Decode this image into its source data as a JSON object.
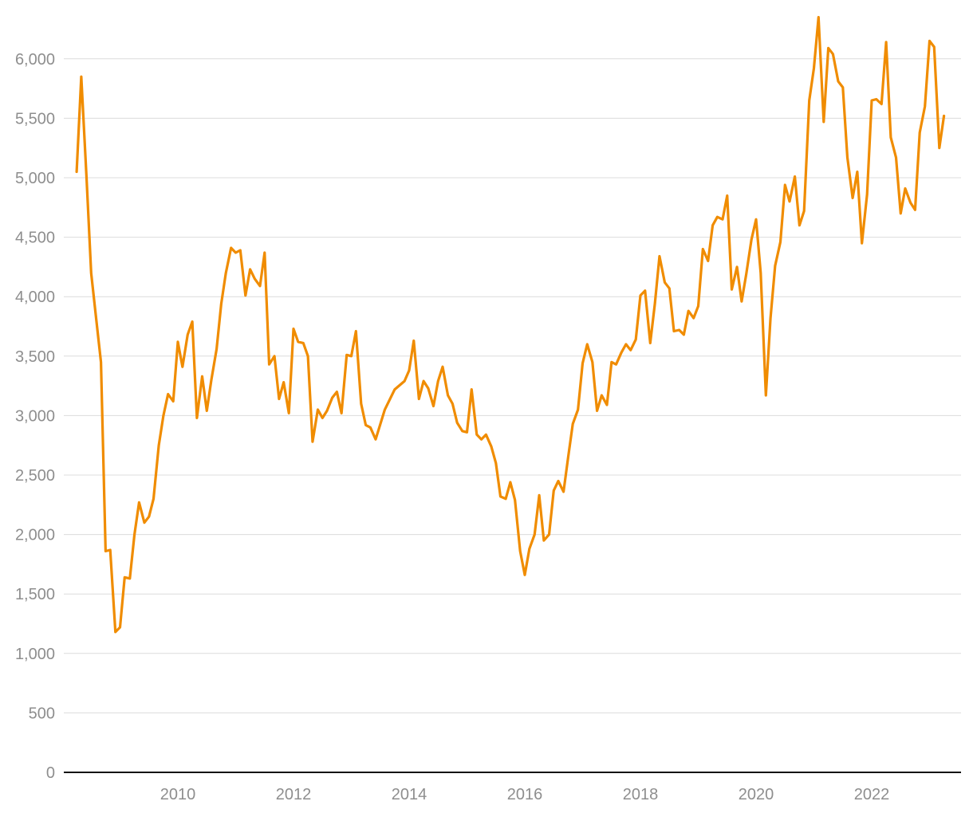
{
  "chart_data": {
    "type": "line",
    "title": "",
    "xlabel": "",
    "ylabel": "",
    "xlim": [
      2008.0,
      2023.8
    ],
    "ylim": [
      0,
      6000
    ],
    "y_ticks": [
      0,
      500,
      1000,
      1500,
      2000,
      2500,
      3000,
      3500,
      4000,
      4500,
      5000,
      5500,
      6000
    ],
    "y_tick_labels": [
      "0",
      "500",
      "1,000",
      "1,500",
      "2,000",
      "2,500",
      "3,000",
      "3,500",
      "4,000",
      "4,500",
      "5,000",
      "5,500",
      "6,000"
    ],
    "x_ticks": [
      2010,
      2012,
      2014,
      2016,
      2018,
      2020,
      2022
    ],
    "x_tick_labels": [
      "2010",
      "2012",
      "2014",
      "2016",
      "2018",
      "2020",
      "2022"
    ],
    "grid": true,
    "legend": "none",
    "colors": {
      "line": "#f08c00",
      "grid": "#dcdcdc",
      "axis": "#111111",
      "tick_text": "#8e8e8e"
    },
    "series": [
      {
        "values": [
          [
            2008.25,
            5050
          ],
          [
            2008.33,
            5850
          ],
          [
            2008.42,
            5000
          ],
          [
            2008.5,
            4200
          ],
          [
            2008.58,
            3850
          ],
          [
            2008.67,
            3450
          ],
          [
            2008.75,
            1860
          ],
          [
            2008.83,
            1870
          ],
          [
            2008.92,
            1180
          ],
          [
            2009.0,
            1220
          ],
          [
            2009.08,
            1640
          ],
          [
            2009.17,
            1630
          ],
          [
            2009.25,
            2000
          ],
          [
            2009.33,
            2270
          ],
          [
            2009.42,
            2100
          ],
          [
            2009.5,
            2150
          ],
          [
            2009.58,
            2300
          ],
          [
            2009.67,
            2750
          ],
          [
            2009.75,
            3000
          ],
          [
            2009.83,
            3180
          ],
          [
            2009.92,
            3120
          ],
          [
            2010.0,
            3620
          ],
          [
            2010.08,
            3410
          ],
          [
            2010.17,
            3680
          ],
          [
            2010.25,
            3790
          ],
          [
            2010.33,
            2980
          ],
          [
            2010.42,
            3330
          ],
          [
            2010.5,
            3040
          ],
          [
            2010.58,
            3300
          ],
          [
            2010.67,
            3560
          ],
          [
            2010.75,
            3940
          ],
          [
            2010.83,
            4200
          ],
          [
            2010.92,
            4410
          ],
          [
            2011.0,
            4370
          ],
          [
            2011.08,
            4390
          ],
          [
            2011.17,
            4010
          ],
          [
            2011.25,
            4230
          ],
          [
            2011.33,
            4150
          ],
          [
            2011.42,
            4090
          ],
          [
            2011.5,
            4370
          ],
          [
            2011.58,
            3430
          ],
          [
            2011.67,
            3500
          ],
          [
            2011.75,
            3140
          ],
          [
            2011.83,
            3280
          ],
          [
            2011.92,
            3020
          ],
          [
            2012.0,
            3730
          ],
          [
            2012.08,
            3620
          ],
          [
            2012.17,
            3610
          ],
          [
            2012.25,
            3500
          ],
          [
            2012.33,
            2780
          ],
          [
            2012.42,
            3050
          ],
          [
            2012.5,
            2980
          ],
          [
            2012.58,
            3040
          ],
          [
            2012.67,
            3150
          ],
          [
            2012.75,
            3200
          ],
          [
            2012.83,
            3020
          ],
          [
            2012.92,
            3510
          ],
          [
            2013.0,
            3500
          ],
          [
            2013.08,
            3710
          ],
          [
            2013.17,
            3100
          ],
          [
            2013.25,
            2920
          ],
          [
            2013.33,
            2900
          ],
          [
            2013.42,
            2800
          ],
          [
            2013.58,
            3050
          ],
          [
            2013.75,
            3220
          ],
          [
            2013.92,
            3290
          ],
          [
            2014.0,
            3380
          ],
          [
            2014.08,
            3630
          ],
          [
            2014.17,
            3140
          ],
          [
            2014.25,
            3290
          ],
          [
            2014.33,
            3230
          ],
          [
            2014.42,
            3080
          ],
          [
            2014.5,
            3290
          ],
          [
            2014.58,
            3410
          ],
          [
            2014.67,
            3170
          ],
          [
            2014.75,
            3100
          ],
          [
            2014.83,
            2940
          ],
          [
            2014.92,
            2870
          ],
          [
            2015.0,
            2860
          ],
          [
            2015.08,
            3220
          ],
          [
            2015.17,
            2840
          ],
          [
            2015.25,
            2800
          ],
          [
            2015.33,
            2840
          ],
          [
            2015.42,
            2740
          ],
          [
            2015.5,
            2600
          ],
          [
            2015.58,
            2320
          ],
          [
            2015.67,
            2300
          ],
          [
            2015.75,
            2440
          ],
          [
            2015.83,
            2290
          ],
          [
            2015.92,
            1860
          ],
          [
            2016.0,
            1660
          ],
          [
            2016.08,
            1880
          ],
          [
            2016.17,
            2000
          ],
          [
            2016.25,
            2330
          ],
          [
            2016.33,
            1950
          ],
          [
            2016.42,
            2000
          ],
          [
            2016.5,
            2370
          ],
          [
            2016.58,
            2450
          ],
          [
            2016.67,
            2360
          ],
          [
            2016.75,
            2650
          ],
          [
            2016.83,
            2930
          ],
          [
            2016.92,
            3050
          ],
          [
            2017.0,
            3440
          ],
          [
            2017.08,
            3600
          ],
          [
            2017.17,
            3450
          ],
          [
            2017.25,
            3040
          ],
          [
            2017.33,
            3170
          ],
          [
            2017.42,
            3090
          ],
          [
            2017.5,
            3450
          ],
          [
            2017.58,
            3430
          ],
          [
            2017.67,
            3530
          ],
          [
            2017.75,
            3600
          ],
          [
            2017.83,
            3550
          ],
          [
            2017.92,
            3640
          ],
          [
            2018.0,
            4010
          ],
          [
            2018.08,
            4050
          ],
          [
            2018.17,
            3610
          ],
          [
            2018.25,
            3940
          ],
          [
            2018.33,
            4340
          ],
          [
            2018.42,
            4120
          ],
          [
            2018.5,
            4070
          ],
          [
            2018.58,
            3710
          ],
          [
            2018.67,
            3720
          ],
          [
            2018.75,
            3680
          ],
          [
            2018.83,
            3880
          ],
          [
            2018.92,
            3820
          ],
          [
            2019.0,
            3920
          ],
          [
            2019.08,
            4400
          ],
          [
            2019.17,
            4300
          ],
          [
            2019.25,
            4600
          ],
          [
            2019.33,
            4670
          ],
          [
            2019.42,
            4650
          ],
          [
            2019.5,
            4850
          ],
          [
            2019.58,
            4060
          ],
          [
            2019.67,
            4250
          ],
          [
            2019.75,
            3960
          ],
          [
            2019.83,
            4190
          ],
          [
            2019.92,
            4480
          ],
          [
            2020.0,
            4650
          ],
          [
            2020.08,
            4200
          ],
          [
            2020.17,
            3170
          ],
          [
            2020.25,
            3820
          ],
          [
            2020.33,
            4260
          ],
          [
            2020.42,
            4460
          ],
          [
            2020.5,
            4940
          ],
          [
            2020.58,
            4800
          ],
          [
            2020.67,
            5010
          ],
          [
            2020.75,
            4600
          ],
          [
            2020.83,
            4720
          ],
          [
            2020.92,
            5650
          ],
          [
            2021.0,
            5920
          ],
          [
            2021.08,
            6350
          ],
          [
            2021.17,
            5470
          ],
          [
            2021.25,
            6090
          ],
          [
            2021.33,
            6040
          ],
          [
            2021.42,
            5810
          ],
          [
            2021.5,
            5760
          ],
          [
            2021.58,
            5170
          ],
          [
            2021.67,
            4830
          ],
          [
            2021.75,
            5050
          ],
          [
            2021.83,
            4450
          ],
          [
            2021.92,
            4860
          ],
          [
            2022.0,
            5650
          ],
          [
            2022.08,
            5660
          ],
          [
            2022.17,
            5620
          ],
          [
            2022.25,
            6140
          ],
          [
            2022.33,
            5340
          ],
          [
            2022.42,
            5170
          ],
          [
            2022.5,
            4700
          ],
          [
            2022.58,
            4910
          ],
          [
            2022.67,
            4790
          ],
          [
            2022.75,
            4730
          ],
          [
            2022.83,
            5380
          ],
          [
            2022.92,
            5600
          ],
          [
            2023.0,
            6150
          ],
          [
            2023.08,
            6100
          ],
          [
            2023.17,
            5250
          ],
          [
            2023.25,
            5520
          ]
        ]
      }
    ]
  }
}
